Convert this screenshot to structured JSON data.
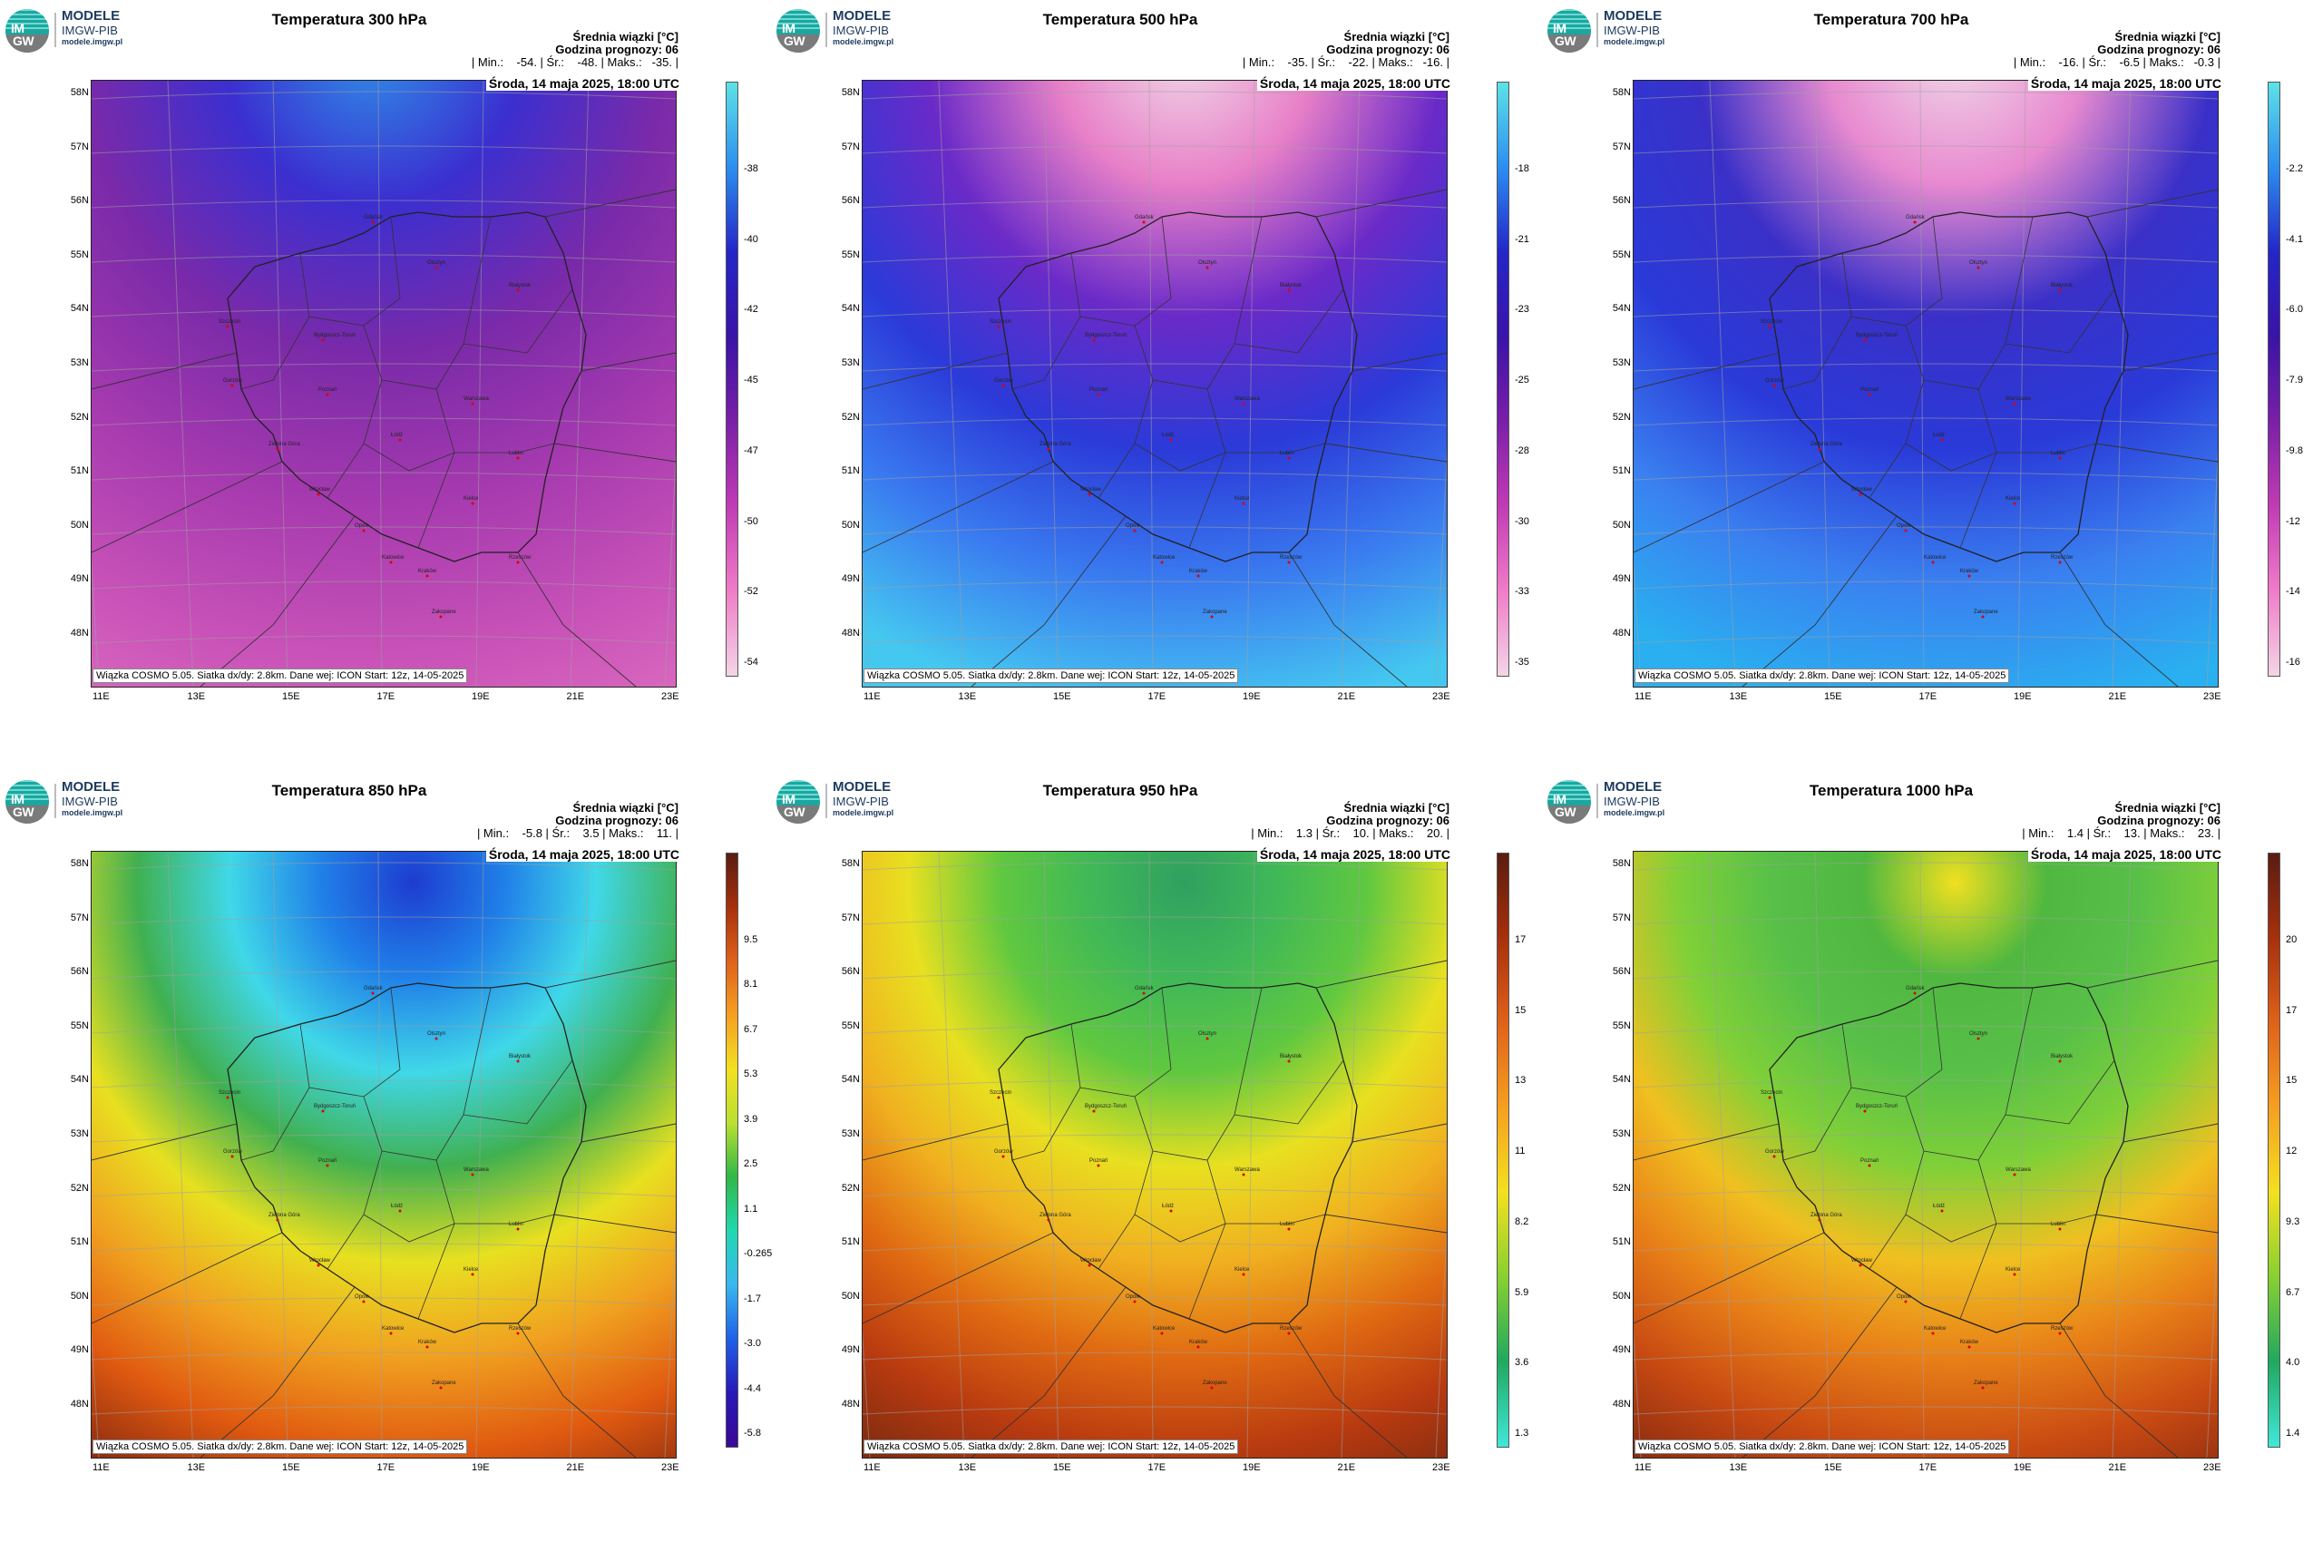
{
  "logo": {
    "badge_top": "IM",
    "badge_bottom": "GW",
    "line1": "MODELE",
    "line2": "IMGW-PIB",
    "line3": "modele.imgw.pl"
  },
  "info_label": "Średnia wiązki [°C]",
  "forecast_hour": "Godzina prognozy: 06",
  "date": "Środa, 14 maja 2025, 18:00 UTC",
  "footer": "Wiązka COSMO 5.05. Siatka dx/dy: 2.8km. Dane wej: ICON Start: 12z, 14-05-2025",
  "lat_labels": [
    "58N",
    "57N",
    "56N",
    "55N",
    "54N",
    "53N",
    "52N",
    "51N",
    "50N",
    "49N",
    "48N"
  ],
  "lon_labels": [
    "11E",
    "13E",
    "15E",
    "17E",
    "19E",
    "21E",
    "23E"
  ],
  "cities": [
    "Gdańsk",
    "Olsztyn",
    "Białystok",
    "Szczecin",
    "Bydgoszcz-Toruń",
    "Gorzów",
    "Poznań",
    "Warszawa",
    "Zielona Góra",
    "Łódź",
    "Lublin",
    "Wrocław",
    "Kielce",
    "Opole",
    "Katowice",
    "Rzeszów",
    "Kraków",
    "Zakopane"
  ],
  "panels": [
    {
      "title": "Temperatura 300 hPa",
      "stats": "| Min.:    -54. | Śr.:    -48. | Maks.:   -35. |",
      "colorbar": [
        "-38",
        "-40",
        "-42",
        "-45",
        "-47",
        "-50",
        "-52",
        "-54"
      ],
      "gradient": [
        "#5de2e8",
        "#2c8ef0",
        "#2426c8",
        "#3a13a8",
        "#7a1fa8",
        "#c23bb5",
        "#f07cc8",
        "#f3d5e6"
      ],
      "map_stops": [
        "#2f8fe8",
        "#3b2fd0",
        "#7a2aa9",
        "#a63aaf",
        "#c852b8",
        "#e070c0"
      ],
      "colormode": "cold"
    },
    {
      "title": "Temperatura 500 hPa",
      "stats": "| Min.:    -35. | Śr.:    -22. | Maks.:   -16. |",
      "colorbar": [
        "-18",
        "-21",
        "-23",
        "-25",
        "-28",
        "-30",
        "-33",
        "-35"
      ],
      "gradient": [
        "#5de2e8",
        "#2c8ef0",
        "#2426c8",
        "#3a13a8",
        "#7a1fa8",
        "#c23bb5",
        "#f07cc8",
        "#f3d5e6"
      ],
      "map_stops": [
        "#f0d8e8",
        "#e880c8",
        "#6a2ac8",
        "#2b3ad8",
        "#3a7cf0",
        "#45c8f0"
      ],
      "colormode": "cold"
    },
    {
      "title": "Temperatura 700 hPa",
      "stats": "| Min.:    -16. | Śr.:    -6.5 | Maks.:   -0.3 |",
      "colorbar": [
        "-2.2",
        "-4.1",
        "-6.0",
        "-7.9",
        "-9.8",
        "-12",
        "-14",
        "-16"
      ],
      "gradient": [
        "#5de2e8",
        "#2c8ef0",
        "#2426c8",
        "#3a13a8",
        "#7a1fa8",
        "#c23bb5",
        "#f07cc8",
        "#f3d5e6"
      ],
      "map_stops": [
        "#f0d8e8",
        "#e88ad0",
        "#3a30c8",
        "#2a3ad8",
        "#3a80f0",
        "#2ab0f0"
      ],
      "colormode": "cold"
    },
    {
      "title": "Temperatura 850 hPa",
      "stats": "| Min.:    -5.8 | Śr.:    3.5 | Maks.:    11. |",
      "colorbar": [
        "9.5",
        "8.1",
        "6.7",
        "5.3",
        "3.9",
        "2.5",
        "1.1",
        "-0.265",
        "-1.7",
        "-3.0",
        "-4.4",
        "-5.8"
      ],
      "gradient": [
        "#5a1c10",
        "#a8300c",
        "#e0621a",
        "#f5a020",
        "#f3e020",
        "#b8e030",
        "#30b848",
        "#20d8b0",
        "#38b8f0",
        "#2060e8",
        "#2818b8",
        "#3a0898"
      ],
      "map_stops": [
        "#1e3cd0",
        "#2080e8",
        "#40d8e8",
        "#40b050",
        "#e8e020",
        "#f0a020",
        "#e05a10",
        "#8a2a10"
      ],
      "colormode": "warm"
    },
    {
      "title": "Temperatura 950 hPa",
      "stats": "| Min.:    1.3 | Śr.:    10. | Maks.:    20. |",
      "colorbar": [
        "17",
        "15",
        "13",
        "11",
        "8.2",
        "5.9",
        "3.6",
        "1.3"
      ],
      "gradient": [
        "#5a1c10",
        "#a8300c",
        "#e0621a",
        "#f5a020",
        "#f3e020",
        "#88d030",
        "#20a860",
        "#40e8d8"
      ],
      "map_stops": [
        "#30a060",
        "#40b858",
        "#60c840",
        "#e8e020",
        "#f0b020",
        "#e06a12",
        "#b83a10",
        "#7a2a10"
      ],
      "colormode": "warm"
    },
    {
      "title": "Temperatura 1000 hPa",
      "stats": "| Min.:    1.4 | Śr.:    13. | Maks.:    23. |",
      "colorbar": [
        "20",
        "17",
        "15",
        "12",
        "9.3",
        "6.7",
        "4.0",
        "1.4"
      ],
      "gradient": [
        "#5a1c10",
        "#a8300c",
        "#e0621a",
        "#f5a020",
        "#f3e020",
        "#88d030",
        "#20a860",
        "#40e8d8"
      ],
      "map_stops": [
        "#f0e020",
        "#50b840",
        "#58c048",
        "#80d038",
        "#f0c020",
        "#e88018",
        "#c84a12",
        "#8a2a10"
      ],
      "colormode": "warm"
    }
  ]
}
